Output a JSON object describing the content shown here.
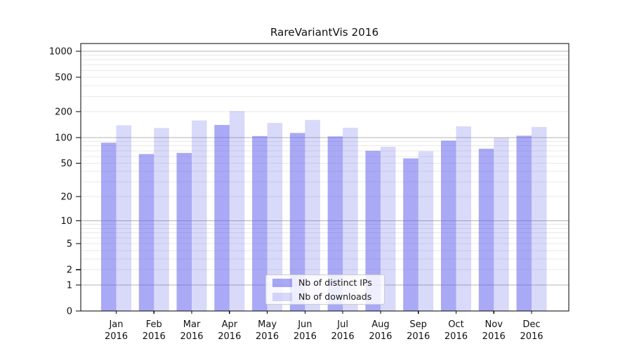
{
  "figure": {
    "title": "RareVariantVis 2016"
  },
  "legend": {
    "items": [
      {
        "label": "Nb of distinct IPs",
        "color_key": "ips"
      },
      {
        "label": "Nb of downloads",
        "color_key": "downloads"
      }
    ]
  },
  "colors": {
    "ips_fill": "rgba(90,90,235,0.52)",
    "downloads_fill": "rgba(90,90,235,0.23)",
    "major_grid": "#b3b3b3",
    "minor_grid": "#e9e9e9",
    "axis": "#000000",
    "tick_text": "#111111",
    "legend_border": "#cccccc"
  },
  "chart_data": {
    "type": "bar",
    "title": "RareVariantVis 2016",
    "categories": [
      "Jan",
      "Feb",
      "Mar",
      "Apr",
      "May",
      "Jun",
      "Jul",
      "Aug",
      "Sep",
      "Oct",
      "Nov",
      "Dec"
    ],
    "category_year": "2016",
    "series": [
      {
        "name": "Nb of distinct IPs",
        "key": "ips",
        "values": [
          87,
          64,
          66,
          140,
          104,
          113,
          103,
          70,
          57,
          92,
          74,
          105
        ]
      },
      {
        "name": "Nb of downloads",
        "key": "downloads",
        "values": [
          139,
          129,
          158,
          203,
          148,
          160,
          130,
          78,
          69,
          135,
          99,
          133
        ]
      }
    ],
    "yscale": "log1p",
    "yticks": [
      0,
      1,
      2,
      5,
      10,
      20,
      50,
      100,
      200,
      500,
      1000
    ],
    "ylim": [
      0,
      1230
    ],
    "grid": true,
    "legend_position": "lower center"
  }
}
